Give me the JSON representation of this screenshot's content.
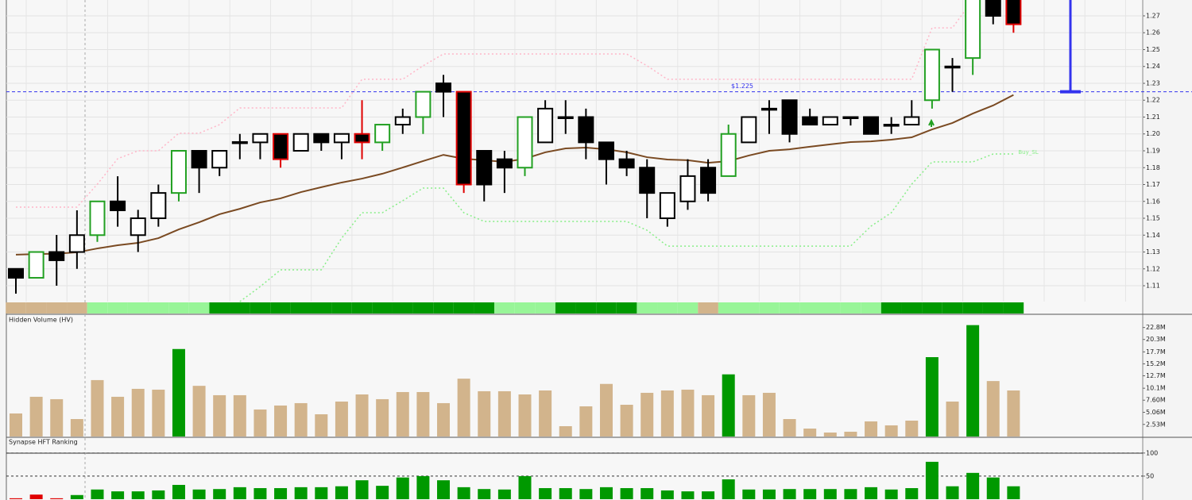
{
  "chart_data": [
    {
      "type": "candlestick",
      "open": [
        1.12,
        1.1147,
        1.13,
        1.13,
        1.14,
        1.16,
        1.14,
        1.15,
        1.165,
        1.19,
        1.18,
        1.195,
        1.195,
        1.2,
        1.19,
        1.2,
        1.195,
        1.2,
        1.195,
        1.2055,
        1.21,
        1.23,
        1.225,
        1.19,
        1.185,
        1.18,
        1.195,
        1.21,
        1.21,
        1.195,
        1.185,
        1.18,
        1.15,
        1.16,
        1.18,
        1.175,
        1.195,
        1.215,
        1.22,
        1.21,
        1.2055,
        1.21,
        1.21,
        1.2055,
        1.2055,
        1.22,
        1.24,
        1.245,
        1.28,
        1.28
      ],
      "high": [
        1.12,
        1.13,
        1.1401,
        1.1547,
        1.16,
        1.1749,
        1.155,
        1.17,
        1.19,
        1.19,
        1.19,
        1.2,
        1.2,
        1.2,
        1.2,
        1.2,
        1.2,
        1.22,
        1.2055,
        1.215,
        1.225,
        1.235,
        1.225,
        1.19,
        1.19,
        1.21,
        1.22,
        1.22,
        1.215,
        1.195,
        1.19,
        1.185,
        1.165,
        1.185,
        1.185,
        1.2055,
        1.21,
        1.22,
        1.22,
        1.215,
        1.21,
        1.21,
        1.21,
        1.21,
        1.22,
        1.25,
        1.245,
        1.28,
        1.28,
        1.28
      ],
      "low": [
        1.1053,
        1.1147,
        1.11,
        1.12,
        1.136,
        1.145,
        1.13,
        1.145,
        1.16,
        1.165,
        1.175,
        1.185,
        1.185,
        1.18,
        1.19,
        1.19,
        1.185,
        1.185,
        1.19,
        1.2,
        1.2,
        1.21,
        1.165,
        1.16,
        1.165,
        1.175,
        1.195,
        1.2,
        1.185,
        1.17,
        1.175,
        1.15,
        1.145,
        1.155,
        1.16,
        1.175,
        1.195,
        1.2,
        1.195,
        1.2055,
        1.2055,
        1.205,
        1.2,
        1.2,
        1.2055,
        1.215,
        1.225,
        1.235,
        1.265,
        1.26
      ],
      "close": [
        1.1147,
        1.13,
        1.1251,
        1.14,
        1.16,
        1.1547,
        1.15,
        1.165,
        1.19,
        1.18,
        1.19,
        1.1952,
        1.2,
        1.185,
        1.2,
        1.195,
        1.2,
        1.195,
        1.2055,
        1.21,
        1.225,
        1.225,
        1.17,
        1.17,
        1.18,
        1.21,
        1.215,
        1.21,
        1.195,
        1.185,
        1.18,
        1.165,
        1.165,
        1.175,
        1.165,
        1.2,
        1.21,
        1.215,
        1.2,
        1.2055,
        1.21,
        1.21,
        1.2,
        1.2055,
        1.21,
        1.25,
        1.24,
        1.28,
        1.27,
        1.265
      ],
      "candle_colors": [
        "#000000",
        "#22a022",
        "#000000",
        "#000000",
        "#22a022",
        "#000000",
        "#000000",
        "#000000",
        "#22a022",
        "#000000",
        "#000000",
        "#000000",
        "#000000",
        "#e00000",
        "#000000",
        "#000000",
        "#000000",
        "#e00000",
        "#22a022",
        "#000000",
        "#22a022",
        "#000000",
        "#e00000",
        "#000000",
        "#000000",
        "#22a022",
        "#000000",
        "#000000",
        "#000000",
        "#000000",
        "#000000",
        "#000000",
        "#000000",
        "#000000",
        "#000000",
        "#22a022",
        "#000000",
        "#000000",
        "#000000",
        "#000000",
        "#000000",
        "#000000",
        "#000000",
        "#000000",
        "#000000",
        "#22a022",
        "#000000",
        "#22a022",
        "#000000",
        "#e00000"
      ],
      "band_colors": [
        "#d2b48c",
        "#d2b48c",
        "#d2b48c",
        "#d2b48c",
        "#98f598",
        "#98f598",
        "#98f598",
        "#98f598",
        "#98f598",
        "#98f598",
        "#009900",
        "#009900",
        "#009900",
        "#009900",
        "#009900",
        "#009900",
        "#009900",
        "#009900",
        "#009900",
        "#009900",
        "#009900",
        "#009900",
        "#009900",
        "#009900",
        "#98f598",
        "#98f598",
        "#98f598",
        "#009900",
        "#009900",
        "#009900",
        "#009900",
        "#98f598",
        "#98f598",
        "#98f598",
        "#d2b48c",
        "#98f598",
        "#98f598",
        "#98f598",
        "#98f598",
        "#98f598",
        "#98f598",
        "#98f598",
        "#98f598",
        "#009900",
        "#009900",
        "#009900",
        "#009900",
        "#009900",
        "#009900",
        "#009900"
      ],
      "lines": [
        {
          "color": "#7a4a22",
          "values": [
            1.1284,
            1.1288,
            1.129,
            1.1298,
            1.1321,
            1.134,
            1.1354,
            1.1382,
            1.1434,
            1.1476,
            1.1524,
            1.1556,
            1.1594,
            1.1618,
            1.1655,
            1.1684,
            1.1712,
            1.1735,
            1.1764,
            1.1801,
            1.1839,
            1.1876,
            1.1853,
            1.1844,
            1.1834,
            1.1853,
            1.1891,
            1.1914,
            1.1919,
            1.1909,
            1.1891,
            1.1862,
            1.1848,
            1.1844,
            1.1829,
            1.1839,
            1.1872,
            1.19,
            1.1909,
            1.1924,
            1.1938,
            1.1952,
            1.1956,
            1.1966,
            1.198,
            1.2027,
            1.2065,
            1.2121,
            1.2169,
            1.2231
          ]
        },
        {
          "color": "#ffb6c8",
          "dash": "2,3",
          "values": [
            1.1566,
            1.1566,
            1.1566,
            1.1566,
            1.1702,
            1.1853,
            1.19,
            1.19,
            1.2004,
            1.2004,
            1.2055,
            1.2154,
            1.2154,
            1.2154,
            1.2154,
            1.2154,
            1.2154,
            1.2324,
            1.2324,
            1.2324,
            1.2404,
            1.2474,
            1.2474,
            1.2474,
            1.2474,
            1.2474,
            1.2474,
            1.2474,
            1.2474,
            1.2474,
            1.2474,
            1.2404,
            1.2324,
            1.2324,
            1.2324,
            1.2324,
            1.2324,
            1.2324,
            1.2324,
            1.2324,
            1.2324,
            1.2324,
            1.2324,
            1.2324,
            1.2324,
            1.2629,
            1.2629,
            1.2794,
            null,
            null
          ]
        },
        {
          "color": "#88ee88",
          "dash": "2,3",
          "label": "Buy_SL",
          "values": [
            null,
            null,
            null,
            null,
            null,
            null,
            null,
            null,
            null,
            null,
            null,
            1.1006,
            1.1095,
            1.1194,
            1.1194,
            1.1194,
            1.1382,
            1.1533,
            1.1533,
            1.1604,
            1.1679,
            1.1679,
            1.1533,
            1.1481,
            1.1481,
            1.1481,
            1.1481,
            1.1481,
            1.1481,
            1.1481,
            1.1481,
            1.1429,
            1.1335,
            1.1335,
            1.1335,
            1.1335,
            1.1335,
            1.1335,
            1.1335,
            1.1335,
            1.1335,
            1.1335,
            1.1453,
            1.1533,
            1.1702,
            1.1834,
            1.1834,
            1.1834,
            1.1881,
            1.1881
          ]
        }
      ],
      "hline": {
        "value": 1.225,
        "label": "$1.225",
        "color": "#3333ee"
      },
      "ylim": [
        1.1006,
        1.2794
      ],
      "yticks": [
        1.11,
        1.12,
        1.13,
        1.14,
        1.15,
        1.16,
        1.17,
        1.18,
        1.19,
        {
          "value": 1.2,
          "label": "1.20"
        },
        1.21,
        1.22,
        1.23,
        1.24,
        1.25,
        1.26,
        1.27
      ],
      "grid": true
    },
    {
      "type": "bar",
      "title": "Hidden Volume (HV)",
      "values": [
        4.82,
        8.31,
        7.81,
        3.65,
        11.8,
        8.31,
        9.97,
        9.8,
        18.3,
        10.6,
        8.64,
        8.64,
        5.65,
        6.48,
        6.98,
        4.65,
        7.31,
        8.8,
        7.81,
        9.3,
        9.3,
        6.98,
        12.1,
        9.47,
        9.47,
        8.8,
        9.63,
        2.16,
        6.31,
        11.0,
        6.64,
        9.14,
        9.63,
        9.8,
        8.64,
        13.0,
        8.64,
        9.14,
        3.65,
        1.66,
        0.83,
        1.0,
        3.16,
        2.33,
        3.32,
        16.6,
        7.31,
        23.3,
        11.6,
        9.63
      ],
      "colors": [
        "#d2b48c",
        "#d2b48c",
        "#d2b48c",
        "#d2b48c",
        "#d2b48c",
        "#d2b48c",
        "#d2b48c",
        "#d2b48c",
        "#009900",
        "#d2b48c",
        "#d2b48c",
        "#d2b48c",
        "#d2b48c",
        "#d2b48c",
        "#d2b48c",
        "#d2b48c",
        "#d2b48c",
        "#d2b48c",
        "#d2b48c",
        "#d2b48c",
        "#d2b48c",
        "#d2b48c",
        "#d2b48c",
        "#d2b48c",
        "#d2b48c",
        "#d2b48c",
        "#d2b48c",
        "#d2b48c",
        "#d2b48c",
        "#d2b48c",
        "#d2b48c",
        "#d2b48c",
        "#d2b48c",
        "#d2b48c",
        "#d2b48c",
        "#009900",
        "#d2b48c",
        "#d2b48c",
        "#d2b48c",
        "#d2b48c",
        "#d2b48c",
        "#d2b48c",
        "#d2b48c",
        "#d2b48c",
        "#d2b48c",
        "#009900",
        "#d2b48c",
        "#009900",
        "#d2b48c",
        "#d2b48c"
      ],
      "ylim": [
        0,
        25.4
      ],
      "yticks": [
        {
          "value": 2.53,
          "label": "2.53M"
        },
        {
          "value": 5.06,
          "label": "5.06M"
        },
        {
          "value": 7.6,
          "label": "7.60M"
        },
        {
          "value": 10.1,
          "label": "10.1M"
        },
        {
          "value": 12.7,
          "label": "12.7M"
        },
        {
          "value": 15.2,
          "label": "15.2M"
        },
        {
          "value": 17.7,
          "label": "17.7M"
        },
        {
          "value": 20.3,
          "label": "20.3M"
        },
        {
          "value": 22.8,
          "label": "22.8M"
        }
      ],
      "grid": false
    },
    {
      "type": "bar",
      "title": "Synapse HFT Ranking",
      "values": [
        2,
        10,
        2,
        9,
        21,
        17,
        17,
        19,
        31,
        21,
        22,
        26,
        24,
        24,
        26,
        26,
        28,
        41,
        29,
        47,
        50,
        41,
        26,
        22,
        21,
        50,
        24,
        24,
        22,
        26,
        24,
        24,
        19,
        17,
        17,
        43,
        21,
        21,
        22,
        22,
        22,
        22,
        26,
        21,
        24,
        81,
        28,
        57,
        47,
        28
      ],
      "colors": [
        "#e00000",
        "#e00000",
        "#e00000",
        "#009900",
        "#009900",
        "#009900",
        "#009900",
        "#009900",
        "#009900",
        "#009900",
        "#009900",
        "#009900",
        "#009900",
        "#009900",
        "#009900",
        "#009900",
        "#009900",
        "#009900",
        "#009900",
        "#009900",
        "#009900",
        "#009900",
        "#009900",
        "#009900",
        "#009900",
        "#009900",
        "#009900",
        "#009900",
        "#009900",
        "#009900",
        "#009900",
        "#009900",
        "#009900",
        "#009900",
        "#009900",
        "#009900",
        "#009900",
        "#009900",
        "#009900",
        "#009900",
        "#009900",
        "#009900",
        "#009900",
        "#009900",
        "#009900",
        "#009900",
        "#009900",
        "#009900",
        "#009900",
        "#009900"
      ],
      "ylim": [
        0,
        110
      ],
      "yticks": [
        50,
        100
      ],
      "grid": true,
      "grid_dash": "3,3"
    }
  ]
}
